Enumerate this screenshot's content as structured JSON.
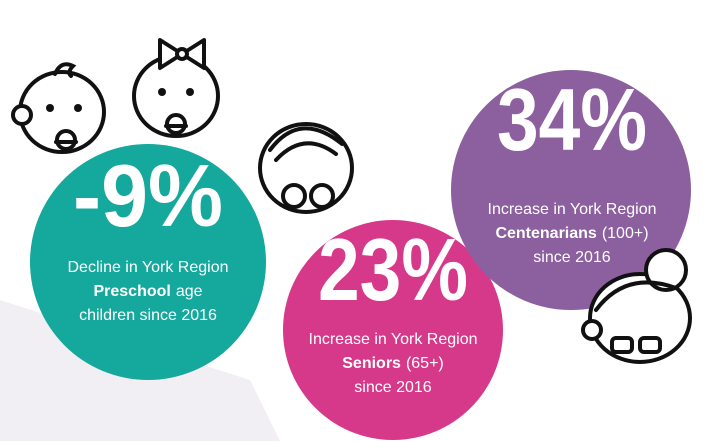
{
  "stats": [
    {
      "stat": "-9%",
      "lines": [
        {
          "text": "Decline in York Region"
        },
        {
          "bold": "Preschool",
          "text": "age"
        },
        {
          "text": "children since 2016"
        }
      ]
    },
    {
      "stat": "23%",
      "lines": [
        {
          "text": "Increase in York Region"
        },
        {
          "bold": "Seniors",
          "text": "(65+)"
        },
        {
          "text": "since 2016"
        }
      ]
    },
    {
      "stat": "34%",
      "lines": [
        {
          "text": "Increase in York Region"
        },
        {
          "bold": "Centenarians",
          "text": "(100+)"
        },
        {
          "text": "since 2016"
        }
      ]
    }
  ]
}
